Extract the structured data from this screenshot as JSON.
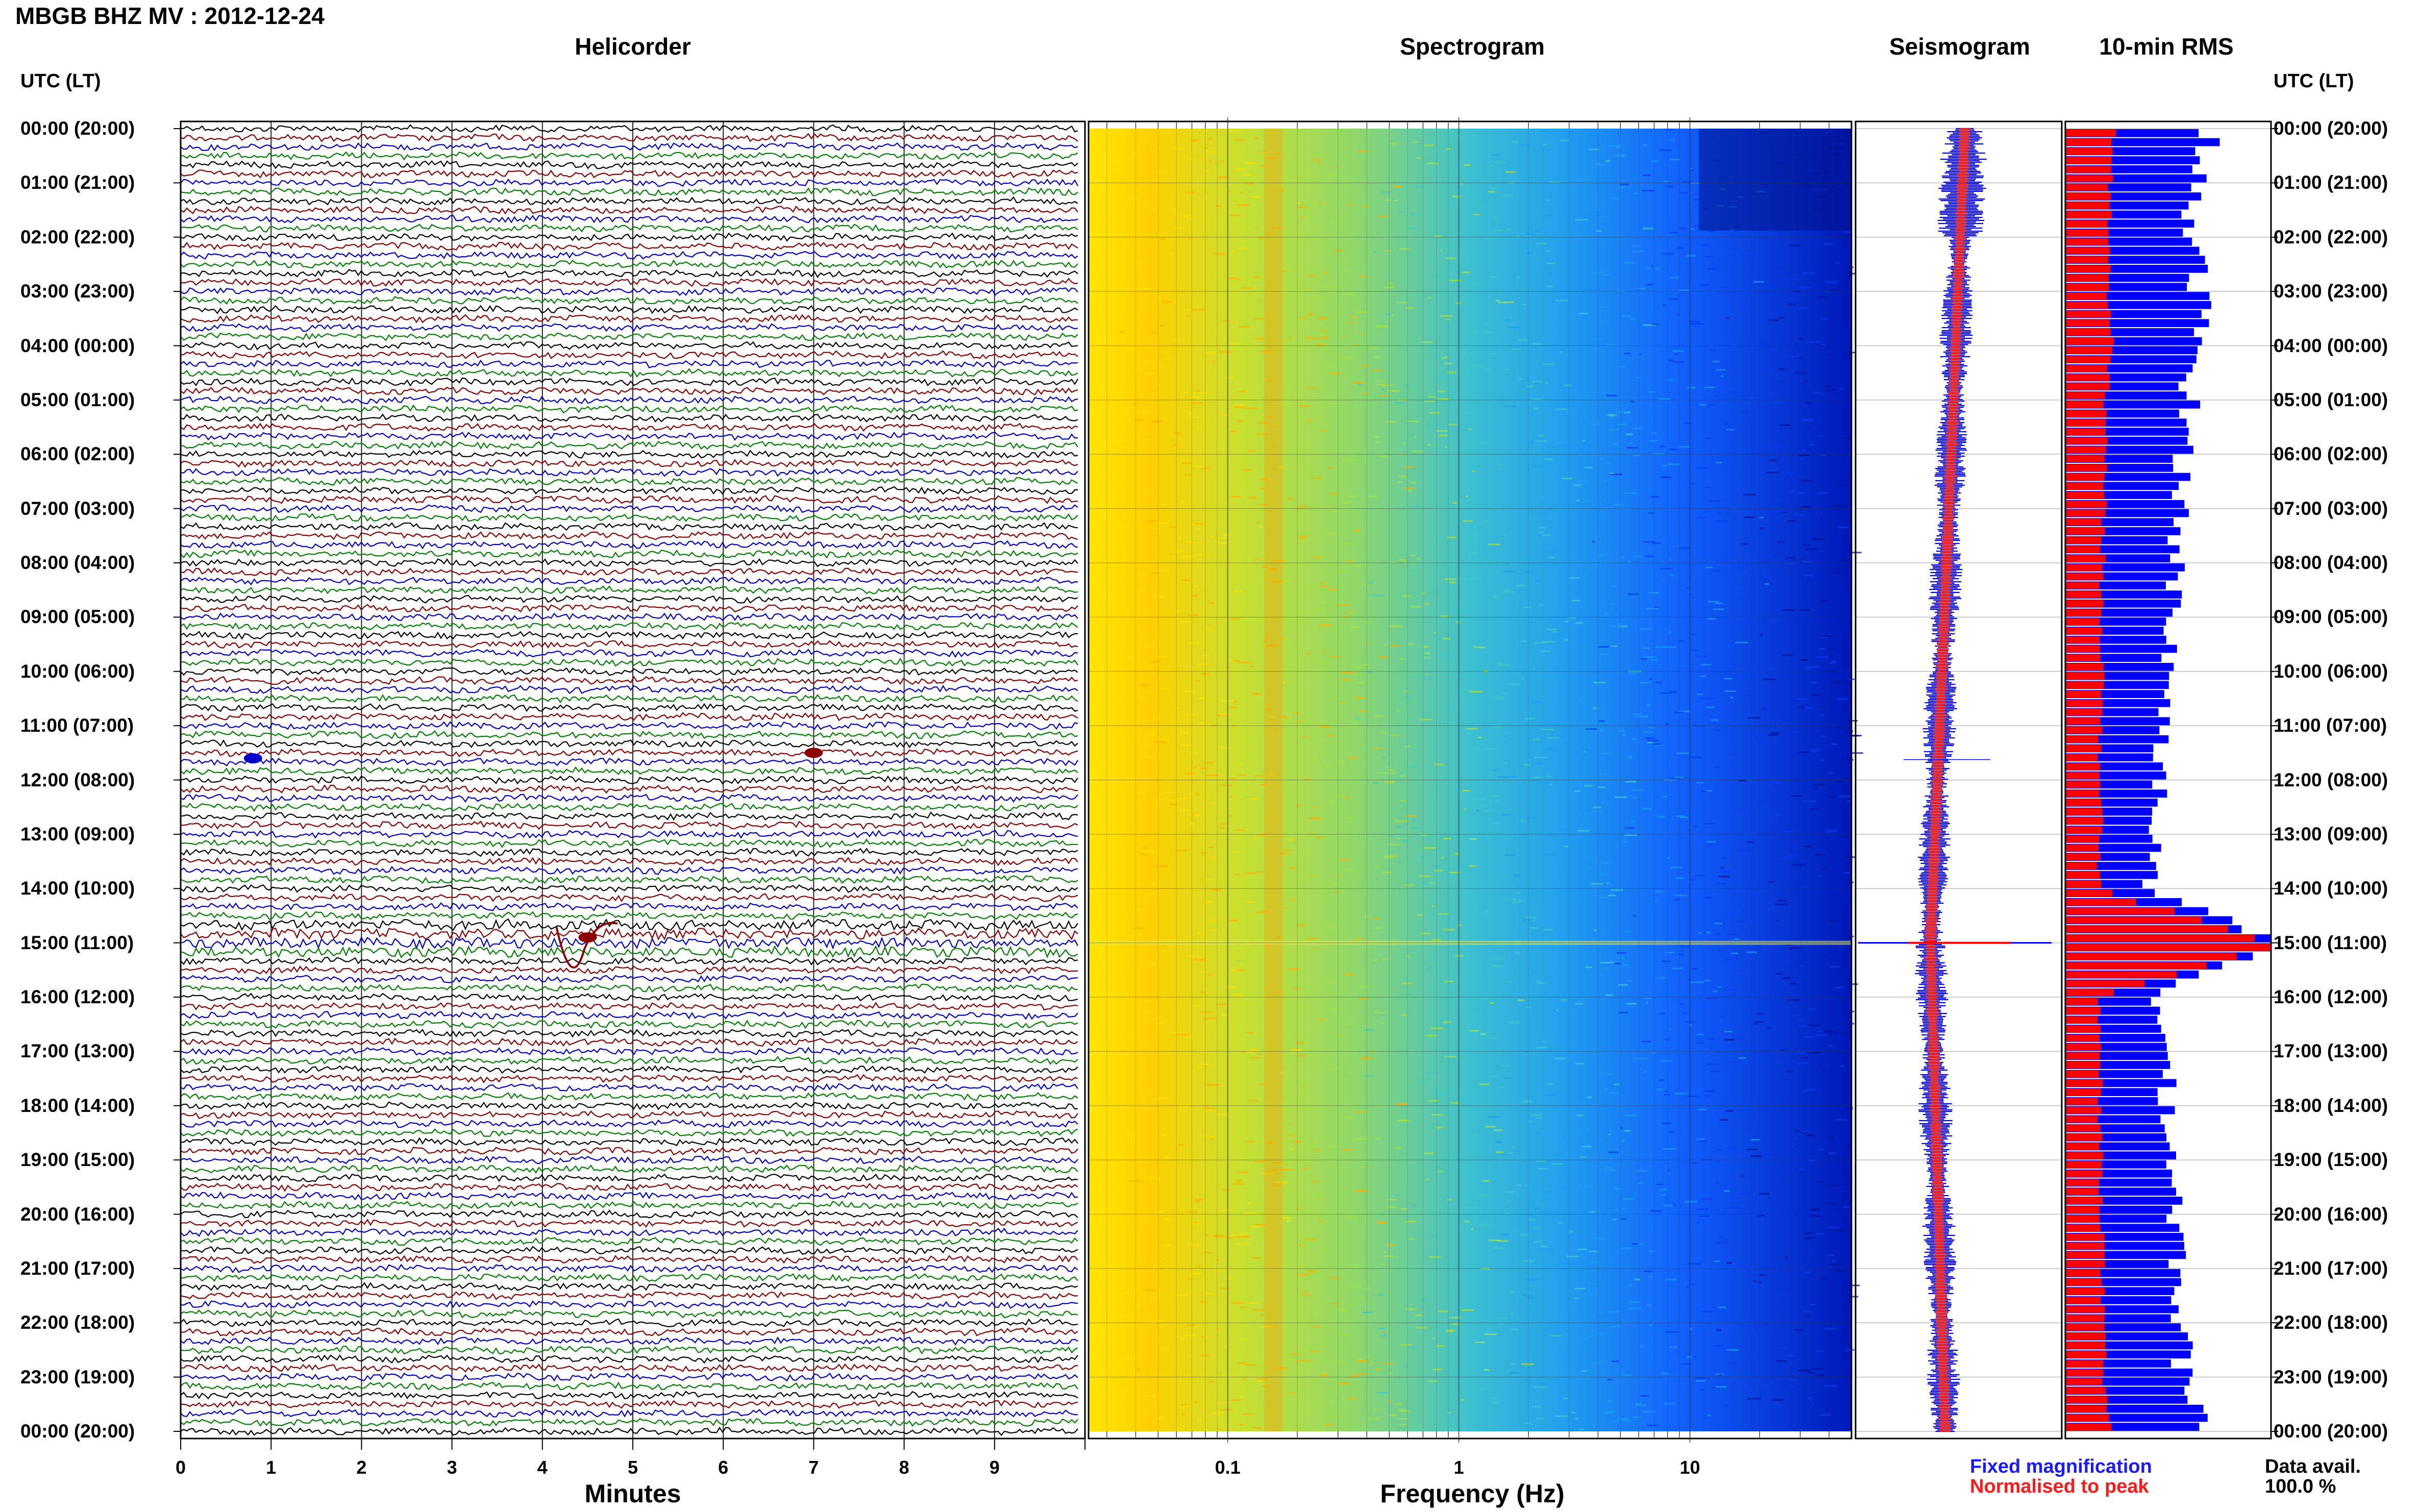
{
  "header": {
    "title": "MBGB BHZ MV : 2012-12-24"
  },
  "panels": {
    "helicorder": "Helicorder",
    "spectrogram": "Spectrogram",
    "seismogram": "Seismogram",
    "rms": "10-min RMS"
  },
  "time_axis": {
    "header_left": "UTC (LT)",
    "header_right": "UTC (LT)",
    "hours": [
      "00:00 (20:00)",
      "01:00 (21:00)",
      "02:00 (22:00)",
      "03:00 (23:00)",
      "04:00 (00:00)",
      "05:00 (01:00)",
      "06:00 (02:00)",
      "07:00 (03:00)",
      "08:00 (04:00)",
      "09:00 (05:00)",
      "10:00 (06:00)",
      "11:00 (07:00)",
      "12:00 (08:00)",
      "13:00 (09:00)",
      "14:00 (10:00)",
      "15:00 (11:00)",
      "16:00 (12:00)",
      "17:00 (13:00)",
      "18:00 (14:00)",
      "19:00 (15:00)",
      "20:00 (16:00)",
      "21:00 (17:00)",
      "22:00 (18:00)",
      "23:00 (19:00)",
      "00:00 (20:00)"
    ]
  },
  "helicorder_axis": {
    "label": "Minutes",
    "ticks": [
      "0",
      "1",
      "2",
      "3",
      "4",
      "5",
      "6",
      "7",
      "8",
      "9"
    ]
  },
  "spectrogram_axis": {
    "label": "Frequency (Hz)",
    "ticks": [
      "0.1",
      "1",
      "10"
    ]
  },
  "legend": {
    "fixed": "Fixed magnification",
    "normalised": "Normalised to peak",
    "fixed_color": "#0000ff",
    "normalised_color": "#ff0000"
  },
  "data_availability": {
    "label": "Data avail.",
    "value": "100.0 %"
  },
  "chart_data": [
    {
      "type": "line",
      "panel": "helicorder",
      "xlabel": "Minutes",
      "xlim": [
        0,
        10
      ],
      "x_ticks": [
        0,
        1,
        2,
        3,
        4,
        5,
        6,
        7,
        8,
        9
      ],
      "y_range_hours": [
        0,
        24
      ],
      "trace_colors": [
        "#000000",
        "#8b0000",
        "#0000cd",
        "#008000"
      ],
      "events": [
        {
          "hour": 11.6,
          "minute": 0.8,
          "color": "#0000cd"
        },
        {
          "hour": 11.5,
          "minute": 7.0,
          "color": "#8b0000"
        },
        {
          "hour": 14.9,
          "minute": 4.5,
          "color": "#8b0000"
        }
      ]
    },
    {
      "type": "heatmap",
      "panel": "spectrogram",
      "xlabel": "Frequency (Hz)",
      "x_scale": "log",
      "xlim": [
        0.025,
        50
      ],
      "x_ticks": [
        0.1,
        1,
        10
      ],
      "colormap": [
        "#ffee00",
        "#ffaa00",
        "#88dd44",
        "#22bbdd",
        "#1166ff",
        "#0011aa"
      ]
    },
    {
      "type": "line",
      "panel": "seismogram",
      "series": [
        {
          "name": "Fixed magnification",
          "color": "#0000ff"
        },
        {
          "name": "Normalised to peak",
          "color": "#ff0000"
        }
      ],
      "peak_hour": 15
    },
    {
      "type": "bar",
      "panel": "rms",
      "title": "10-min RMS",
      "x": [
        0,
        1,
        2,
        3,
        4,
        5,
        6,
        7,
        8,
        9,
        10,
        11,
        12,
        13,
        14,
        15,
        16,
        17,
        18,
        19,
        20,
        21,
        22,
        23,
        24
      ],
      "fixed_magnification": [
        0.72,
        0.62,
        0.6,
        0.66,
        0.64,
        0.6,
        0.58,
        0.56,
        0.54,
        0.52,
        0.5,
        0.48,
        0.46,
        0.44,
        0.4,
        1.0,
        0.44,
        0.48,
        0.5,
        0.52,
        0.54,
        0.55,
        0.56,
        0.57,
        0.66
      ],
      "normalised_to_peak": [
        0.24,
        0.22,
        0.21,
        0.21,
        0.22,
        0.2,
        0.19,
        0.19,
        0.18,
        0.18,
        0.18,
        0.17,
        0.17,
        0.17,
        0.16,
        1.0,
        0.16,
        0.17,
        0.17,
        0.17,
        0.18,
        0.18,
        0.18,
        0.19,
        0.21
      ]
    }
  ]
}
